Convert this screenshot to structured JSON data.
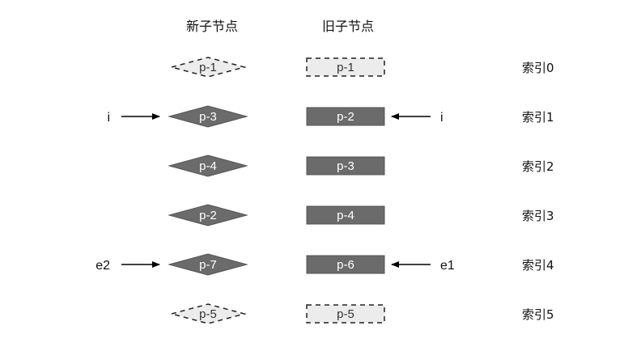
{
  "headers": {
    "new_children": "新子节点",
    "old_children": "旧子节点"
  },
  "colors": {
    "solid_fill": "#6b6b6b",
    "solid_stroke": "#555555",
    "dashed_fill": "#ececec",
    "dashed_stroke": "#222222",
    "arrow": "#000000"
  },
  "rows": [
    {
      "new_label": "p-1",
      "new_style": "dashed",
      "old_label": "p-1",
      "old_style": "dashed",
      "index_label": "索引0"
    },
    {
      "new_label": "p-3",
      "new_style": "solid",
      "old_label": "p-2",
      "old_style": "solid",
      "index_label": "索引1",
      "left_pointer": "i",
      "right_pointer": "i"
    },
    {
      "new_label": "p-4",
      "new_style": "solid",
      "old_label": "p-3",
      "old_style": "solid",
      "index_label": "索引2"
    },
    {
      "new_label": "p-2",
      "new_style": "solid",
      "old_label": "p-4",
      "old_style": "solid",
      "index_label": "索引3"
    },
    {
      "new_label": "p-7",
      "new_style": "solid",
      "old_label": "p-6",
      "old_style": "solid",
      "index_label": "索引4",
      "left_pointer": "e2",
      "right_pointer": "e1"
    },
    {
      "new_label": "p-5",
      "new_style": "dashed",
      "old_label": "p-5",
      "old_style": "dashed",
      "index_label": "索引5"
    }
  ]
}
